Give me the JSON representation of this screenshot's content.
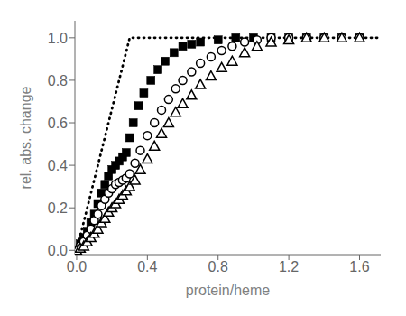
{
  "chart_data": {
    "type": "scatter",
    "xlabel": "protein/heme",
    "ylabel": "rel. abs. change",
    "xlim": [
      -0.01,
      1.72
    ],
    "ylim": [
      -0.02,
      1.08
    ],
    "xticks": [
      {
        "value": 0.0,
        "label": "0.0"
      },
      0.4,
      0.8,
      1.2,
      1.6
    ],
    "yticks": [
      {
        "value": 0.0,
        "label": "0.0"
      },
      0.2,
      0.4,
      0.6,
      0.8,
      {
        "value": 1.0,
        "label": "1.0"
      }
    ],
    "grid": false,
    "series": [
      {
        "type": "line",
        "line_style": "dotted",
        "color": "black",
        "x": [
          0.0,
          0.3,
          1.7
        ],
        "values": [
          0.0,
          1.0,
          1.0
        ]
      },
      {
        "type": "scatter",
        "marker": "filled_square",
        "color": "black",
        "x": [
          0.0,
          0.02,
          0.04,
          0.06,
          0.08,
          0.1,
          0.12,
          0.14,
          0.16,
          0.18,
          0.2,
          0.22,
          0.24,
          0.26,
          0.28,
          0.3,
          0.32,
          0.35,
          0.38,
          0.42,
          0.46,
          0.5,
          0.55,
          0.6,
          0.65,
          0.7,
          0.8,
          0.9,
          1.0,
          1.1,
          1.2,
          1.3,
          1.4,
          1.5,
          1.6
        ],
        "values": [
          0.0,
          0.03,
          0.06,
          0.09,
          0.13,
          0.17,
          0.22,
          0.27,
          0.31,
          0.35,
          0.38,
          0.4,
          0.42,
          0.44,
          0.46,
          0.53,
          0.6,
          0.68,
          0.74,
          0.8,
          0.85,
          0.89,
          0.93,
          0.96,
          0.97,
          0.98,
          0.99,
          1.0,
          1.0,
          1.0,
          1.0,
          1.0,
          1.0,
          1.0,
          1.0
        ]
      },
      {
        "type": "scatter",
        "marker": "open_circle",
        "color": "black",
        "x": [
          0.0,
          0.02,
          0.04,
          0.06,
          0.08,
          0.1,
          0.12,
          0.14,
          0.16,
          0.18,
          0.2,
          0.22,
          0.24,
          0.26,
          0.28,
          0.3,
          0.33,
          0.36,
          0.4,
          0.44,
          0.48,
          0.52,
          0.56,
          0.6,
          0.65,
          0.7,
          0.76,
          0.82,
          0.88,
          0.95,
          1.02,
          1.1,
          1.2,
          1.3,
          1.4,
          1.5,
          1.6
        ],
        "values": [
          0.0,
          0.02,
          0.04,
          0.07,
          0.1,
          0.14,
          0.17,
          0.21,
          0.24,
          0.27,
          0.29,
          0.31,
          0.32,
          0.33,
          0.34,
          0.36,
          0.41,
          0.47,
          0.54,
          0.6,
          0.66,
          0.71,
          0.76,
          0.8,
          0.84,
          0.88,
          0.91,
          0.94,
          0.96,
          0.98,
          0.99,
          1.0,
          1.0,
          1.0,
          1.0,
          1.0,
          1.0
        ]
      },
      {
        "type": "scatter",
        "marker": "open_triangle",
        "color": "black",
        "x": [
          0.0,
          0.02,
          0.04,
          0.06,
          0.08,
          0.1,
          0.12,
          0.14,
          0.16,
          0.18,
          0.2,
          0.22,
          0.24,
          0.26,
          0.28,
          0.3,
          0.33,
          0.36,
          0.4,
          0.44,
          0.48,
          0.52,
          0.56,
          0.6,
          0.65,
          0.7,
          0.76,
          0.82,
          0.88,
          0.95,
          1.02,
          1.1,
          1.2,
          1.3,
          1.4,
          1.5,
          1.6
        ],
        "values": [
          0.0,
          0.01,
          0.02,
          0.04,
          0.06,
          0.08,
          0.1,
          0.13,
          0.15,
          0.18,
          0.2,
          0.22,
          0.24,
          0.26,
          0.28,
          0.3,
          0.33,
          0.38,
          0.43,
          0.49,
          0.55,
          0.6,
          0.65,
          0.69,
          0.73,
          0.78,
          0.82,
          0.86,
          0.89,
          0.93,
          0.96,
          0.98,
          0.99,
          1.0,
          1.0,
          1.0,
          1.0
        ]
      }
    ]
  }
}
